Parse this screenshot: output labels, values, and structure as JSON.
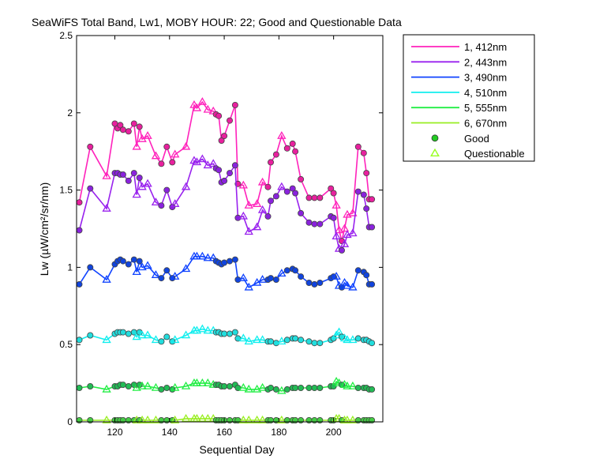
{
  "chart_data": {
    "type": "line",
    "title": "SeaWiFS Total Band,  Lw1, MOBY HOUR: 22;  Good and Questionable Data",
    "xlabel": "Sequential Day",
    "ylabel": "Lw (µW/cm²/sr/nm)",
    "xlim": [
      106,
      218
    ],
    "ylim": [
      0,
      2.5
    ],
    "xticks": [
      120,
      140,
      160,
      180,
      200
    ],
    "yticks": [
      0,
      0.5,
      1,
      1.5,
      2,
      2.5
    ],
    "ytick_labels": [
      "0",
      "0.5",
      "1",
      "1.5",
      "2",
      "2.5"
    ],
    "grid": false,
    "legend_position": "outside-right",
    "marker_legend": [
      {
        "label": "Good",
        "marker": "circle",
        "color": "#22cc22"
      },
      {
        "label": "Questionable",
        "marker": "triangle",
        "color": "#99ff22"
      }
    ],
    "x": [
      107,
      111,
      117,
      120,
      121,
      122,
      123,
      125,
      127,
      128,
      129,
      130,
      132,
      135,
      137,
      139,
      141,
      142,
      146,
      149,
      150,
      152,
      154,
      156,
      157,
      158,
      159,
      160,
      162,
      164,
      165,
      167,
      169,
      172,
      174,
      176,
      177,
      179,
      181,
      183,
      185,
      186,
      188,
      191,
      193,
      195,
      199,
      200,
      201,
      202,
      203,
      204,
      205,
      207,
      209,
      211,
      212,
      213,
      214
    ],
    "quality": [
      "G",
      "G",
      "Q",
      "G",
      "G",
      "G",
      "G",
      "G",
      "G",
      "Q",
      "G",
      "Q",
      "Q",
      "Q",
      "G",
      "G",
      "G",
      "Q",
      "Q",
      "Q",
      "Q",
      "Q",
      "Q",
      "Q",
      "G",
      "G",
      "G",
      "G",
      "G",
      "G",
      "G",
      "Q",
      "Q",
      "Q",
      "Q",
      "G",
      "G",
      "G",
      "Q",
      "G",
      "G",
      "G",
      "G",
      "G",
      "G",
      "G",
      "G",
      "G",
      "Q",
      "Q",
      "G",
      "Q",
      "Q",
      "Q",
      "G",
      "G",
      "G",
      "G",
      "G"
    ],
    "series": [
      {
        "name": "1, 412nm",
        "color": "#ff22bb",
        "fill": "#e8209e",
        "values": [
          1.42,
          1.78,
          1.59,
          1.93,
          1.9,
          1.92,
          1.89,
          1.88,
          1.93,
          1.78,
          1.91,
          1.83,
          1.85,
          1.72,
          1.67,
          1.78,
          1.68,
          1.73,
          1.78,
          2.05,
          2.03,
          2.07,
          2.02,
          2.01,
          1.99,
          1.98,
          1.82,
          1.85,
          1.95,
          2.05,
          1.54,
          1.53,
          1.4,
          1.41,
          1.55,
          1.52,
          1.68,
          1.73,
          1.85,
          1.77,
          1.8,
          1.75,
          1.57,
          1.45,
          1.45,
          1.45,
          1.51,
          1.48,
          1.4,
          1.24,
          1.17,
          1.25,
          1.34,
          1.35,
          1.78,
          1.74,
          1.61,
          1.44,
          1.44
        ]
      },
      {
        "name": "2, 443nm",
        "color": "#9922ee",
        "fill": "#8a22dd",
        "values": [
          1.24,
          1.51,
          1.38,
          1.61,
          1.61,
          1.6,
          1.6,
          1.56,
          1.61,
          1.47,
          1.58,
          1.52,
          1.54,
          1.42,
          1.4,
          1.5,
          1.39,
          1.41,
          1.52,
          1.69,
          1.68,
          1.7,
          1.66,
          1.67,
          1.64,
          1.63,
          1.55,
          1.56,
          1.61,
          1.66,
          1.32,
          1.33,
          1.23,
          1.26,
          1.37,
          1.33,
          1.43,
          1.46,
          1.52,
          1.49,
          1.51,
          1.48,
          1.35,
          1.29,
          1.28,
          1.28,
          1.33,
          1.32,
          1.2,
          1.12,
          1.11,
          1.15,
          1.21,
          1.22,
          1.49,
          1.47,
          1.38,
          1.26,
          1.26
        ]
      },
      {
        "name": "3, 490nm",
        "color": "#1144ff",
        "fill": "#1144dd",
        "values": [
          0.89,
          1.0,
          0.92,
          1.02,
          1.04,
          1.05,
          1.04,
          1.02,
          1.05,
          0.97,
          1.04,
          1.0,
          1.01,
          0.95,
          0.93,
          0.98,
          0.93,
          0.94,
          0.99,
          1.07,
          1.07,
          1.07,
          1.06,
          1.06,
          1.04,
          1.03,
          1.02,
          1.03,
          1.04,
          1.05,
          0.92,
          0.93,
          0.87,
          0.9,
          0.92,
          0.92,
          0.93,
          0.92,
          0.96,
          0.98,
          0.99,
          0.98,
          0.94,
          0.9,
          0.89,
          0.9,
          0.93,
          0.94,
          0.94,
          0.88,
          0.87,
          0.9,
          0.88,
          0.87,
          0.98,
          0.97,
          0.95,
          0.89,
          0.89
        ]
      },
      {
        "name": "4, 510nm",
        "color": "#11eeee",
        "fill": "#22dddd",
        "values": [
          0.53,
          0.56,
          0.53,
          0.57,
          0.58,
          0.58,
          0.58,
          0.57,
          0.58,
          0.55,
          0.58,
          0.56,
          0.56,
          0.53,
          0.52,
          0.55,
          0.52,
          0.53,
          0.56,
          0.59,
          0.59,
          0.6,
          0.59,
          0.59,
          0.58,
          0.58,
          0.57,
          0.57,
          0.57,
          0.58,
          0.54,
          0.54,
          0.52,
          0.53,
          0.53,
          0.52,
          0.52,
          0.51,
          0.52,
          0.53,
          0.54,
          0.54,
          0.53,
          0.52,
          0.51,
          0.51,
          0.53,
          0.54,
          0.56,
          0.58,
          0.55,
          0.54,
          0.53,
          0.53,
          0.54,
          0.53,
          0.53,
          0.52,
          0.51
        ]
      },
      {
        "name": "5, 555nm",
        "color": "#22ee44",
        "fill": "#22bb55",
        "values": [
          0.22,
          0.23,
          0.21,
          0.23,
          0.23,
          0.24,
          0.24,
          0.23,
          0.24,
          0.22,
          0.24,
          0.23,
          0.23,
          0.22,
          0.21,
          0.22,
          0.21,
          0.22,
          0.23,
          0.25,
          0.25,
          0.25,
          0.25,
          0.24,
          0.24,
          0.24,
          0.23,
          0.23,
          0.23,
          0.24,
          0.22,
          0.22,
          0.21,
          0.21,
          0.22,
          0.21,
          0.22,
          0.21,
          0.2,
          0.21,
          0.22,
          0.22,
          0.22,
          0.22,
          0.22,
          0.22,
          0.23,
          0.23,
          0.26,
          0.25,
          0.24,
          0.24,
          0.23,
          0.23,
          0.22,
          0.22,
          0.22,
          0.21,
          0.21
        ]
      },
      {
        "name": "6, 670nm",
        "color": "#99ee22",
        "fill": "#44cc44",
        "values": [
          0.01,
          0.01,
          0.01,
          0.01,
          0.01,
          0.01,
          0.01,
          0.01,
          0.01,
          0.01,
          0.01,
          0.01,
          0.01,
          0.01,
          0.01,
          0.01,
          0.01,
          0.01,
          0.02,
          0.02,
          0.02,
          0.02,
          0.02,
          0.02,
          0.01,
          0.01,
          0.01,
          0.01,
          0.01,
          0.01,
          0.01,
          0.01,
          0.01,
          0.01,
          0.01,
          0.01,
          0.01,
          0.01,
          0.01,
          0.01,
          0.01,
          0.01,
          0.01,
          0.01,
          0.01,
          0.01,
          0.01,
          0.01,
          0.02,
          0.02,
          0.01,
          0.01,
          0.01,
          0.01,
          0.01,
          0.01,
          0.01,
          0.01,
          0.01
        ]
      }
    ]
  }
}
